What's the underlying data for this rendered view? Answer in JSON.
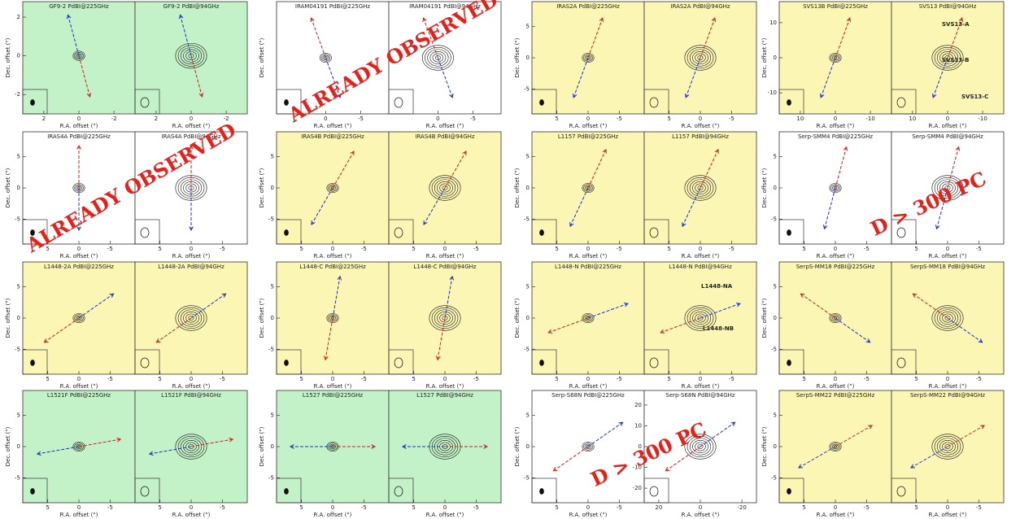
{
  "pairs": [
    {
      "background": "#c4f2c8",
      "xlim": [
        3.2,
        -3.2
      ],
      "ylim": [
        -3,
        2.8
      ],
      "xticks": [
        2,
        0,
        -2
      ],
      "yticks": [
        -2,
        0,
        2
      ],
      "xlabel": "R.A. offset (\")",
      "ylabel": "Dec. offset (\")",
      "panels": [
        {
          "title": "GF9-2 PdBI@225GHz"
        },
        {
          "title": "GF9-2 PdBI@94GHz"
        }
      ]
    },
    {
      "background": "#ffffff",
      "xlim": [
        7,
        -9
      ],
      "ylim": [
        -9,
        9
      ],
      "xticks": [
        0,
        -5
      ],
      "yticks": [],
      "xlabel": "R.A. offset (\")",
      "ylabel": "Dec. offset (\")",
      "panels": [
        {
          "title": "IRAM04191 PdBI@225GHz"
        },
        {
          "title": "IRAM04191 PdBI@94GHz"
        }
      ],
      "stamp": "ALREADY OBSERVED"
    },
    {
      "background": "#fbf6b4",
      "xlim": [
        9,
        -9
      ],
      "ylim": [
        -9,
        9
      ],
      "xticks": [
        5,
        0,
        -5
      ],
      "yticks": [
        -5,
        0,
        5
      ],
      "xlabel": "R.A. offset (\")",
      "ylabel": "Dec. offset (\")",
      "panels": [
        {
          "title": "IRAS2A PdBI@225GHz"
        },
        {
          "title": "IRAS2A PdBI@94GHz"
        }
      ]
    },
    {
      "background": "#fbf6b4",
      "xlim": [
        16,
        -16
      ],
      "ylim": [
        -16,
        16
      ],
      "xticks": [
        10,
        0,
        -10
      ],
      "yticks": [
        -10,
        0,
        10
      ],
      "xlabel": "R.A. offset (\")",
      "ylabel": "Dec. offset (\")",
      "panels": [
        {
          "title": "SVS13B PdBI@225GHz"
        },
        {
          "title": "SVS13 PdBI@94GHz",
          "labels": [
            "SVS13-A",
            "SVS13-B",
            "SVS13-C"
          ]
        }
      ]
    },
    {
      "background": "#ffffff",
      "xlim": [
        9,
        -9
      ],
      "ylim": [
        -9,
        9
      ],
      "xticks": [
        5,
        0,
        -5
      ],
      "yticks": [
        -5,
        0,
        5
      ],
      "xlabel": "R.A. offset (\")",
      "ylabel": "Dec. offset (\")",
      "panels": [
        {
          "title": "IRAS4A PdBI@225GHz"
        },
        {
          "title": "IRAS4A PdBI@94GHz"
        }
      ],
      "stamp": "ALREADY OBSERVED"
    },
    {
      "background": "#fbf6b4",
      "xlim": [
        9,
        -9
      ],
      "ylim": [
        -9,
        9
      ],
      "xticks": [
        5,
        0,
        -5
      ],
      "yticks": [
        -5,
        0,
        5
      ],
      "xlabel": "R.A. offset (\")",
      "ylabel": "Dec. offset (\")",
      "panels": [
        {
          "title": "IRAS4B PdBI@225GHz"
        },
        {
          "title": "IRAS4B PdBI@94GHz"
        }
      ]
    },
    {
      "background": "#fbf6b4",
      "xlim": [
        9,
        -9
      ],
      "ylim": [
        -9,
        9
      ],
      "xticks": [
        5,
        0,
        -5
      ],
      "yticks": [
        -5,
        0,
        5
      ],
      "xlabel": "R.A. offset (\")",
      "ylabel": "Dec. offset (\")",
      "panels": [
        {
          "title": "L1157 PdBI@225GHz"
        },
        {
          "title": "L1157 PdBI@94GHz"
        }
      ]
    },
    {
      "background": "#ffffff",
      "xlim": [
        9,
        -9
      ],
      "ylim": [
        -9,
        9
      ],
      "xticks": [
        5,
        0,
        -5
      ],
      "yticks": [
        -5,
        0,
        5
      ],
      "xlabel": "R.A. offset (\")",
      "ylabel": "Dec. offset (\")",
      "panels": [
        {
          "title": "Serp-SMM4 PdBI@225GHz"
        },
        {
          "title": "Serp-SMM4 PdBI@94GHz"
        }
      ],
      "stamp": "D > 300 PC"
    },
    {
      "background": "#fbf6b4",
      "xlim": [
        9,
        -9
      ],
      "ylim": [
        -9,
        9
      ],
      "xticks": [
        5,
        0,
        -5
      ],
      "yticks": [
        -5,
        0,
        5
      ],
      "xlabel": "R.A. offset (\")",
      "ylabel": "Dec. offset (\")",
      "panels": [
        {
          "title": "L1448-2A PdBI@225GHz"
        },
        {
          "title": "L1448-2A PdBI@94GHz"
        }
      ]
    },
    {
      "background": "#fbf6b4",
      "xlim": [
        9,
        -9
      ],
      "ylim": [
        -9,
        9
      ],
      "xticks": [
        5,
        0,
        -5
      ],
      "yticks": [
        -5,
        0,
        5
      ],
      "xlabel": "R.A. offset (\")",
      "ylabel": "Dec. offset (\")",
      "panels": [
        {
          "title": "L1448-C PdBI@225GHz"
        },
        {
          "title": "L1448-C PdBI@94GHz"
        }
      ]
    },
    {
      "background": "#fbf6b4",
      "xlim": [
        9,
        -9
      ],
      "ylim": [
        -9,
        9
      ],
      "xticks": [
        5,
        0,
        -5
      ],
      "yticks": [
        -5,
        0,
        5
      ],
      "xlabel": "R.A. offset (\")",
      "ylabel": "Dec. offset (\")",
      "panels": [
        {
          "title": "L1448-N PdBI@225GHz"
        },
        {
          "title": "L1448-N PdBI@94GHz",
          "labels": [
            "L1448-NA",
            "L1448-NB"
          ]
        }
      ]
    },
    {
      "background": "#fbf6b4",
      "xlim": [
        9,
        -9
      ],
      "ylim": [
        -9,
        9
      ],
      "xticks": [
        5,
        0,
        -5
      ],
      "yticks": [
        -5,
        0,
        5
      ],
      "xlabel": "R.A. offset (\")",
      "ylabel": "Dec. offset (\")",
      "panels": [
        {
          "title": "SerpS-MM18 PdBI@225GHz"
        },
        {
          "title": "SerpS-MM18 PdBI@94GHz"
        }
      ]
    },
    {
      "background": "#c4f2c8",
      "xlim": [
        9,
        -9
      ],
      "ylim": [
        -9,
        9
      ],
      "xticks": [
        5,
        0,
        -5
      ],
      "yticks": [
        -5,
        0,
        5
      ],
      "xlabel": "R.A. offset (\")",
      "ylabel": "Dec. offset (\")",
      "panels": [
        {
          "title": "L1521F PdBI@225GHz"
        },
        {
          "title": "L1521F PdBI@94GHz"
        }
      ]
    },
    {
      "background": "#c4f2c8",
      "xlim": [
        9,
        -9
      ],
      "ylim": [
        -9,
        9
      ],
      "xticks": [
        5,
        0,
        -5
      ],
      "yticks": [
        -5,
        0,
        5
      ],
      "xlabel": "R.A. offset (\")",
      "ylabel": "Dec. offset (\")",
      "panels": [
        {
          "title": "L1527 PdBI@225GHz"
        },
        {
          "title": "L1527 PdBI@94GHz"
        }
      ]
    },
    {
      "background": "#ffffff",
      "xlim": [
        9,
        -9
      ],
      "ylim": [
        -9,
        9
      ],
      "xticks": [
        5,
        0,
        -5
      ],
      "yticks": [
        -5,
        0,
        5
      ],
      "xlabel": "R.A. offset (\")",
      "ylabel": "Dec. offset (\")",
      "panels": [
        {
          "title": "Serp-S68N PdBI@225GHz"
        },
        {
          "title": "Serp-S68N PdBI@94GHz",
          "xlim": [
            27,
            -27
          ],
          "ylim": [
            -27,
            27
          ],
          "xticks": [
            20,
            0,
            -20
          ],
          "yticks": [
            -20,
            -10,
            0,
            10,
            20
          ]
        }
      ],
      "stamp": "D > 300 PC"
    },
    {
      "background": "#fbf6b4",
      "xlim": [
        9,
        -9
      ],
      "ylim": [
        -9,
        9
      ],
      "xticks": [
        5,
        0,
        -5
      ],
      "yticks": [
        -5,
        0,
        5
      ],
      "xlabel": "R.A. offset (\")",
      "ylabel": "Dec. offset (\")",
      "panels": [
        {
          "title": "SerpS-MM22 PdBI@225GHz"
        },
        {
          "title": "SerpS-MM22 PdBI@94GHz"
        }
      ]
    }
  ]
}
